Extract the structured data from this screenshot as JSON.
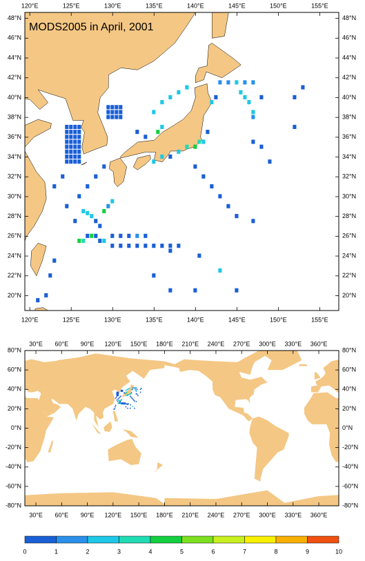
{
  "top_map": {
    "title": "MODS2005 in April, 2001",
    "xlim": [
      119.4,
      157.3
    ],
    "ylim": [
      18.5,
      48.6
    ],
    "xticks": [
      {
        "value": 120,
        "label": "120°E"
      },
      {
        "value": 125,
        "label": "125°E"
      },
      {
        "value": 130,
        "label": "130°E"
      },
      {
        "value": 135,
        "label": "135°E"
      },
      {
        "value": 140,
        "label": "140°E"
      },
      {
        "value": 145,
        "label": "145°E"
      },
      {
        "value": 150,
        "label": "150°E"
      },
      {
        "value": 155,
        "label": "155°E"
      }
    ],
    "yticks": [
      {
        "value": 20,
        "label": "20°N"
      },
      {
        "value": 22,
        "label": "22°N"
      },
      {
        "value": 24,
        "label": "24°N"
      },
      {
        "value": 26,
        "label": "26°N"
      },
      {
        "value": 28,
        "label": "28°N"
      },
      {
        "value": 30,
        "label": "30°N"
      },
      {
        "value": 32,
        "label": "32°N"
      },
      {
        "value": 34,
        "label": "34°N"
      },
      {
        "value": 36,
        "label": "36°N"
      },
      {
        "value": 38,
        "label": "38°N"
      },
      {
        "value": 40,
        "label": "40°N"
      },
      {
        "value": 42,
        "label": "42°N"
      },
      {
        "value": 44,
        "label": "44°N"
      },
      {
        "value": 46,
        "label": "46°N"
      },
      {
        "value": 48,
        "label": "48°N"
      }
    ],
    "cells": [
      [
        124.5,
        37,
        0.5
      ],
      [
        125,
        37,
        0.5
      ],
      [
        125.5,
        37,
        0.5
      ],
      [
        126,
        37,
        0.5
      ],
      [
        124.5,
        36.5,
        0.5
      ],
      [
        125,
        36.5,
        0.5
      ],
      [
        125.5,
        36.5,
        0.5
      ],
      [
        126,
        36.5,
        0.5
      ],
      [
        124.5,
        36,
        0.5
      ],
      [
        125,
        36,
        0.5
      ],
      [
        125.5,
        36,
        0.5
      ],
      [
        126,
        36,
        0.5
      ],
      [
        124.5,
        35.5,
        0.5
      ],
      [
        125,
        35.5,
        0.5
      ],
      [
        125.5,
        35.5,
        0.5
      ],
      [
        126,
        35.5,
        0.5
      ],
      [
        124.5,
        35,
        0.5
      ],
      [
        125,
        35,
        0.5
      ],
      [
        125.5,
        35,
        0.5
      ],
      [
        126,
        35,
        0.5
      ],
      [
        124.5,
        34.5,
        0.5
      ],
      [
        125,
        34.5,
        0.5
      ],
      [
        125.5,
        34.5,
        0.5
      ],
      [
        126,
        34.5,
        0.5
      ],
      [
        124.5,
        34,
        0.5
      ],
      [
        125,
        34,
        0.5
      ],
      [
        125.5,
        34,
        0.5
      ],
      [
        126,
        34,
        0.5
      ],
      [
        124.5,
        33.5,
        0.5
      ],
      [
        125,
        33.5,
        0.5
      ],
      [
        125.5,
        33.5,
        0.5
      ],
      [
        126,
        33.5,
        0.5
      ],
      [
        129.5,
        39,
        0.5
      ],
      [
        130,
        39,
        0.5
      ],
      [
        130.5,
        39,
        0.5
      ],
      [
        131,
        39,
        0.5
      ],
      [
        129.5,
        38.5,
        0.5
      ],
      [
        130,
        38.5,
        0.5
      ],
      [
        130.5,
        38.5,
        0.5
      ],
      [
        131,
        38.5,
        0.5
      ],
      [
        129.5,
        38,
        0.5
      ],
      [
        130,
        38,
        0.5
      ],
      [
        130.5,
        38,
        0.5
      ],
      [
        131,
        38,
        0.5
      ],
      [
        126,
        25.5,
        4.5
      ],
      [
        126.5,
        25.5,
        3.5
      ],
      [
        127,
        26,
        0.5
      ],
      [
        127.5,
        26,
        4.5
      ],
      [
        128,
        26,
        0.5
      ],
      [
        128.5,
        25.5,
        0.5
      ],
      [
        129,
        25.5,
        2.5
      ],
      [
        130,
        25,
        0.5
      ],
      [
        126.5,
        28.5,
        2.5
      ],
      [
        127,
        28.3,
        2.5
      ],
      [
        127.5,
        28,
        2.5
      ],
      [
        128,
        27.5,
        0.5
      ],
      [
        128.5,
        27,
        0.5
      ],
      [
        129,
        28.5,
        4.5
      ],
      [
        129.5,
        29,
        1.5
      ],
      [
        130,
        29.5,
        2.5
      ],
      [
        131,
        25,
        0.5
      ],
      [
        132,
        25,
        0.5
      ],
      [
        133,
        25,
        0.5
      ],
      [
        134,
        25,
        0.5
      ],
      [
        135,
        25,
        0.5
      ],
      [
        136,
        25,
        0.5
      ],
      [
        137,
        25,
        0.5
      ],
      [
        138,
        25,
        0.5
      ],
      [
        130,
        26,
        0.5
      ],
      [
        131,
        26,
        0.5
      ],
      [
        132,
        26,
        0.5
      ],
      [
        133,
        26,
        1.5
      ],
      [
        134,
        26,
        0.5
      ],
      [
        135,
        33.5,
        2.5
      ],
      [
        136,
        34,
        2.5
      ],
      [
        137,
        34,
        0.5
      ],
      [
        138,
        34.5,
        2.5
      ],
      [
        139,
        35,
        3.5
      ],
      [
        140,
        35,
        4.5
      ],
      [
        140.5,
        35.5,
        3.5
      ],
      [
        141,
        35.5,
        2.5
      ],
      [
        141.5,
        36.5,
        0.5
      ],
      [
        136,
        37,
        2.5
      ],
      [
        135.5,
        36.5,
        4.5
      ],
      [
        134,
        36,
        0.5
      ],
      [
        133,
        36.5,
        0.5
      ],
      [
        135,
        38.5,
        2.5
      ],
      [
        136,
        39.5,
        2.5
      ],
      [
        137,
        40,
        2.5
      ],
      [
        138,
        40.5,
        2.5
      ],
      [
        139,
        41,
        2.5
      ],
      [
        142,
        39.5,
        2.5
      ],
      [
        142.5,
        40,
        0.5
      ],
      [
        143,
        41.5,
        1.5
      ],
      [
        144,
        41.5,
        1.5
      ],
      [
        145,
        41.5,
        2.5
      ],
      [
        146,
        41.5,
        1.5
      ],
      [
        147,
        41.5,
        1.5
      ],
      [
        145.5,
        40.5,
        2.5
      ],
      [
        146,
        40,
        2.5
      ],
      [
        146.5,
        39.5,
        2.5
      ],
      [
        147,
        38.5,
        2.5
      ],
      [
        147,
        38,
        1.5
      ],
      [
        140,
        33,
        0.5
      ],
      [
        141,
        32,
        0.5
      ],
      [
        142,
        31,
        0.5
      ],
      [
        143,
        30,
        0.5
      ],
      [
        144,
        29,
        0.5
      ],
      [
        145,
        28,
        0.5
      ],
      [
        147,
        27.5,
        0.5
      ],
      [
        126,
        30,
        0.5
      ],
      [
        127,
        31,
        0.5
      ],
      [
        128,
        32,
        0.5
      ],
      [
        129,
        33,
        0.5
      ],
      [
        122,
        20,
        0.5
      ],
      [
        121,
        19.5,
        0.5
      ],
      [
        122.5,
        22,
        0.5
      ],
      [
        123,
        23.5,
        0.5
      ],
      [
        135,
        22,
        0.5
      ],
      [
        137,
        20.5,
        0.5
      ],
      [
        140,
        20.5,
        0.5
      ],
      [
        145,
        20.5,
        0.5
      ],
      [
        147,
        35.5,
        0.5
      ],
      [
        148,
        35,
        0.5
      ],
      [
        149,
        33.5,
        0.5
      ],
      [
        152,
        37,
        0.5
      ],
      [
        152,
        40,
        0.5
      ],
      [
        153,
        41,
        0.5
      ],
      [
        148,
        40,
        0.5
      ],
      [
        137,
        24.5,
        0.5
      ],
      [
        140.5,
        24,
        0.5
      ],
      [
        143,
        22.5,
        2.5
      ],
      [
        123,
        31,
        0.5
      ],
      [
        124,
        32,
        0.5
      ],
      [
        124.5,
        29,
        0.5
      ],
      [
        125.5,
        27.5,
        0.5
      ]
    ]
  },
  "world_map": {
    "xlim": [
      17.1,
      383.3
    ],
    "ylim": [
      -80,
      80
    ],
    "xticks": [
      {
        "value": 30,
        "label": "30°E"
      },
      {
        "value": 60,
        "label": "60°E"
      },
      {
        "value": 90,
        "label": "90°E"
      },
      {
        "value": 120,
        "label": "120°E"
      },
      {
        "value": 150,
        "label": "150°E"
      },
      {
        "value": 180,
        "label": "180°E"
      },
      {
        "value": 210,
        "label": "210°E"
      },
      {
        "value": 240,
        "label": "240°E"
      },
      {
        "value": 270,
        "label": "270°E"
      },
      {
        "value": 300,
        "label": "300°E"
      },
      {
        "value": 330,
        "label": "330°E"
      },
      {
        "value": 360,
        "label": "360°E"
      }
    ],
    "yticks": [
      {
        "value": 80,
        "label": "80°N"
      },
      {
        "value": 60,
        "label": "60°N"
      },
      {
        "value": 40,
        "label": "40°N"
      },
      {
        "value": 20,
        "label": "20°N"
      },
      {
        "value": 0,
        "label": "0°N"
      },
      {
        "value": -20,
        "label": "-20°N"
      },
      {
        "value": -40,
        "label": "-40°N"
      },
      {
        "value": -60,
        "label": "-60°N"
      },
      {
        "value": -80,
        "label": "-80°N"
      }
    ]
  },
  "colorbar": {
    "ticks": [
      0,
      1,
      2,
      3,
      4,
      5,
      6,
      7,
      8,
      9,
      10
    ],
    "colors": [
      "#1a5fd6",
      "#2a90ea",
      "#1ec8e6",
      "#20dcb4",
      "#14d040",
      "#7ce020",
      "#c8f020",
      "#f8f000",
      "#f8b000",
      "#f05010"
    ]
  }
}
